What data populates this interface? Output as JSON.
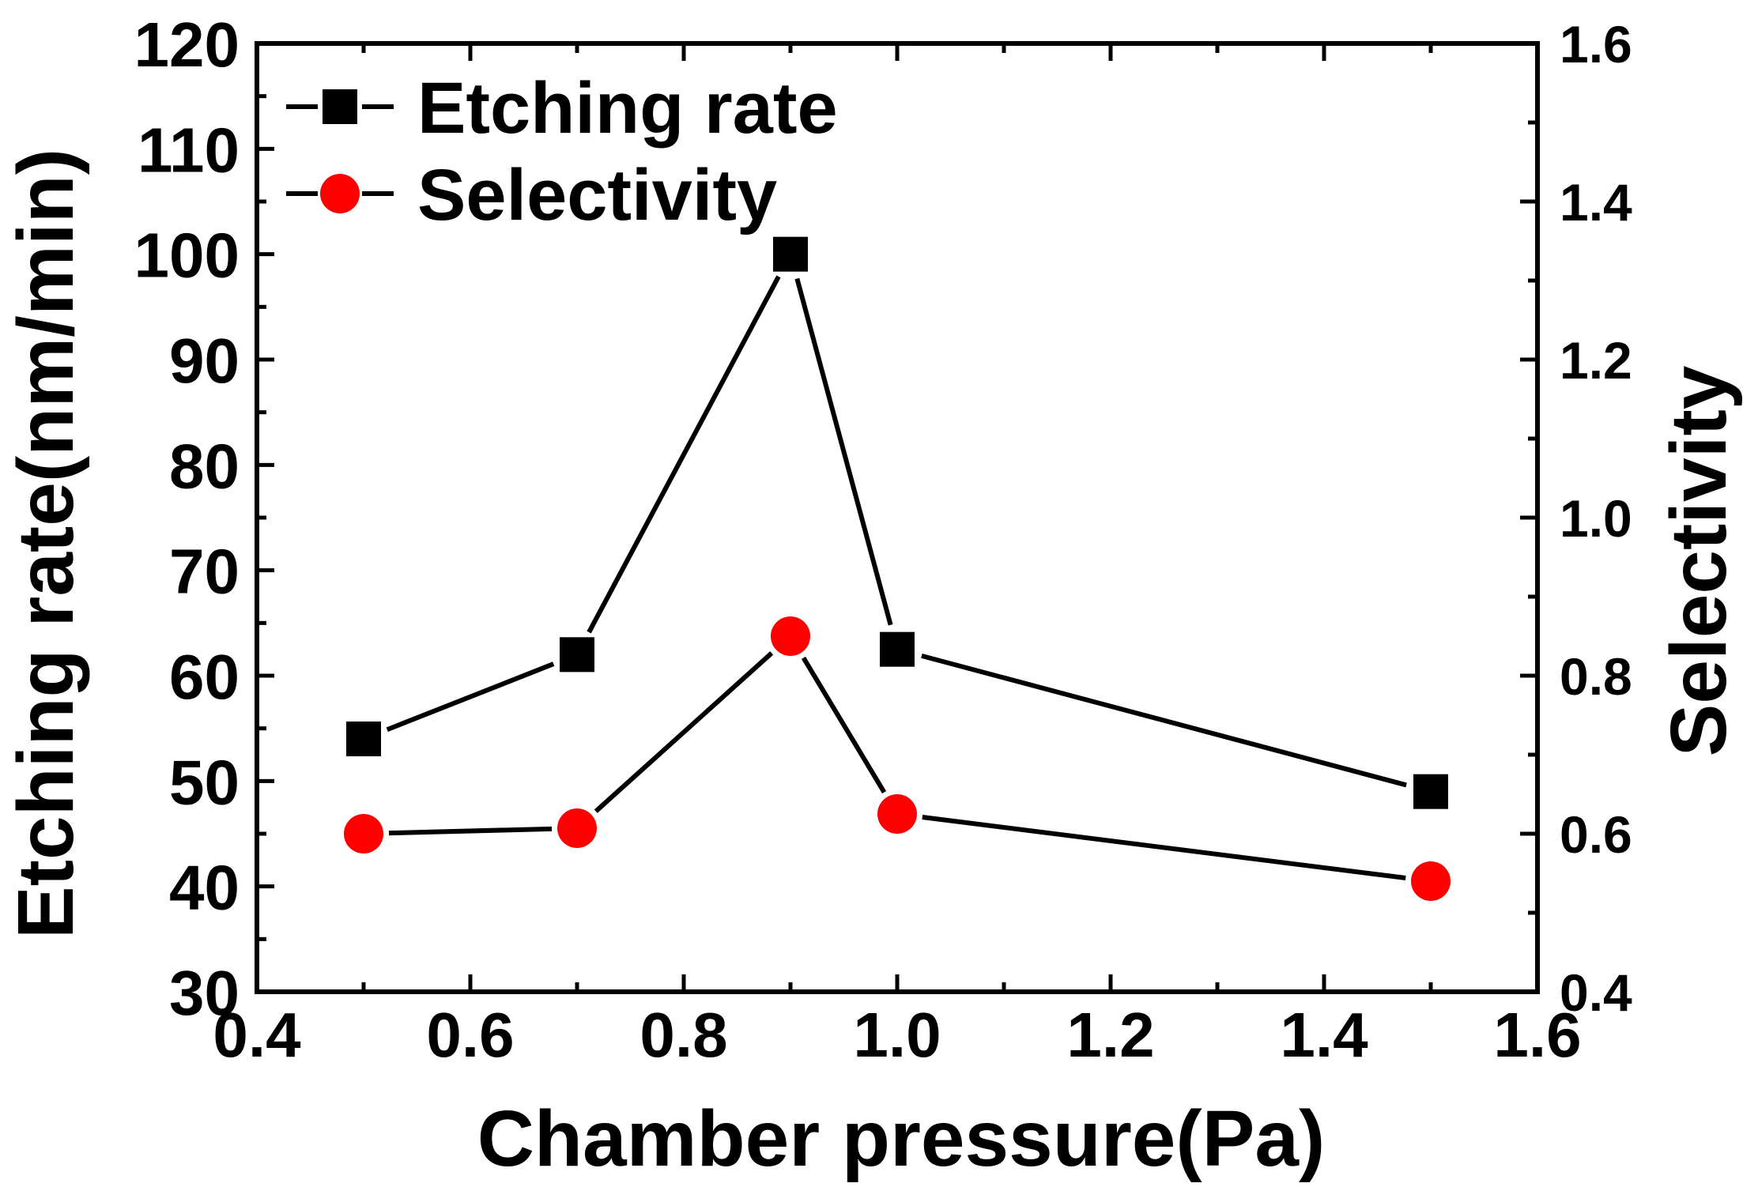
{
  "chart_data": {
    "type": "line",
    "title": "",
    "xlabel": "Chamber pressure(Pa)",
    "ylabel": "Etching rate(nm/min)",
    "y2label": "Selectivity",
    "xlim": [
      0.4,
      1.6
    ],
    "ylim": [
      30,
      120
    ],
    "y2lim": [
      0.4,
      1.6
    ],
    "x_ticks": [
      "0.4",
      "0.6",
      "0.8",
      "1.0",
      "1.2",
      "1.4",
      "1.6"
    ],
    "y_ticks": [
      "30",
      "40",
      "50",
      "60",
      "70",
      "80",
      "90",
      "100",
      "110",
      "120"
    ],
    "y2_ticks": [
      "0.4",
      "0.6",
      "0.8",
      "1.0",
      "1.2",
      "1.4",
      "1.6"
    ],
    "grid": false,
    "legend_position": "top-left",
    "series": [
      {
        "name": "Etching rate",
        "axis": "left",
        "marker": "square",
        "color": "#000000",
        "x": [
          0.5,
          0.7,
          0.9,
          1.0,
          1.5
        ],
        "values": [
          54,
          62,
          100,
          62.5,
          49
        ]
      },
      {
        "name": "Selectivity",
        "axis": "right",
        "marker": "circle",
        "color": "#ff0000",
        "x": [
          0.5,
          0.7,
          0.9,
          1.0,
          1.5
        ],
        "values": [
          0.6,
          0.607,
          0.85,
          0.625,
          0.54
        ]
      }
    ]
  }
}
